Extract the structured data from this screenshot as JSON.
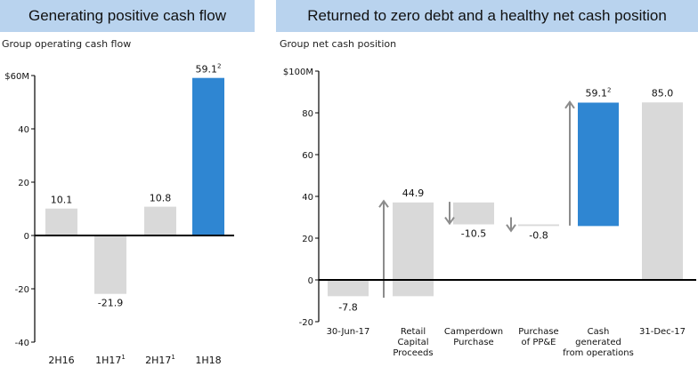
{
  "left_panel": {
    "banner": "Generating positive cash flow",
    "subtitle": "Group operating cash flow"
  },
  "right_panel": {
    "banner": "Returned to zero debt and a healthy net cash position",
    "subtitle": "Group net cash position"
  },
  "colors": {
    "grey_bar": "#d9d9d9",
    "blue_bar": "#2f86d2",
    "arrow": "#8c8c8c",
    "banner_bg": "#b9d3ee"
  },
  "chart_data": [
    {
      "type": "bar",
      "title": "Group operating cash flow",
      "categories": [
        "2H16",
        "1H17",
        "2H17",
        "1H18"
      ],
      "category_superscripts": [
        "",
        "1",
        "1",
        ""
      ],
      "values": [
        10.1,
        -21.9,
        10.8,
        59.1
      ],
      "value_labels": [
        "10.1",
        "-21.9",
        "10.8",
        "59.1"
      ],
      "value_superscripts": [
        "",
        "",
        "",
        "2"
      ],
      "highlight": [
        false,
        false,
        false,
        true
      ],
      "ylim": [
        -40,
        60
      ],
      "yticks": [
        60,
        40,
        20,
        0,
        -20,
        -40
      ],
      "ytick_labels": [
        "$60M",
        "40",
        "20",
        "0",
        "-20",
        "-40"
      ],
      "grid": false
    },
    {
      "type": "waterfall",
      "title": "Group net cash position",
      "categories": [
        "30-Jun-17",
        "Retail Capital Proceeds",
        "Camperdown Purchase",
        "Purchase of PP&E",
        "Cash generated from operations",
        "31-Dec-17"
      ],
      "category_lines": [
        [
          "30-Jun-17"
        ],
        [
          "Retail",
          "Capital",
          "Proceeds"
        ],
        [
          "Camperdown",
          "Purchase"
        ],
        [
          "Purchase",
          "of PP&E"
        ],
        [
          "Cash",
          "generated",
          "from operations"
        ],
        [
          "31-Dec-17"
        ]
      ],
      "values": [
        -7.8,
        44.9,
        -10.5,
        -0.8,
        59.1,
        85.0
      ],
      "value_labels": [
        "-7.8",
        "44.9",
        "-10.5",
        "-0.8",
        "59.1",
        "85.0"
      ],
      "value_superscripts": [
        "",
        "",
        "",
        "",
        "2",
        ""
      ],
      "steps": [
        {
          "from": 0,
          "to": -7.8
        },
        {
          "from": -7.8,
          "to": 37.1
        },
        {
          "from": 37.1,
          "to": 26.6
        },
        {
          "from": 26.6,
          "to": 25.8
        },
        {
          "from": 25.8,
          "to": 84.9
        },
        {
          "from": 0,
          "to": 85.0
        }
      ],
      "highlight": [
        false,
        false,
        false,
        false,
        true,
        false
      ],
      "ylim": [
        -20,
        100
      ],
      "yticks": [
        100,
        80,
        60,
        40,
        20,
        0,
        -20
      ],
      "ytick_labels": [
        "$100M",
        "80",
        "60",
        "40",
        "20",
        "0",
        "-20"
      ],
      "grid": false
    }
  ]
}
